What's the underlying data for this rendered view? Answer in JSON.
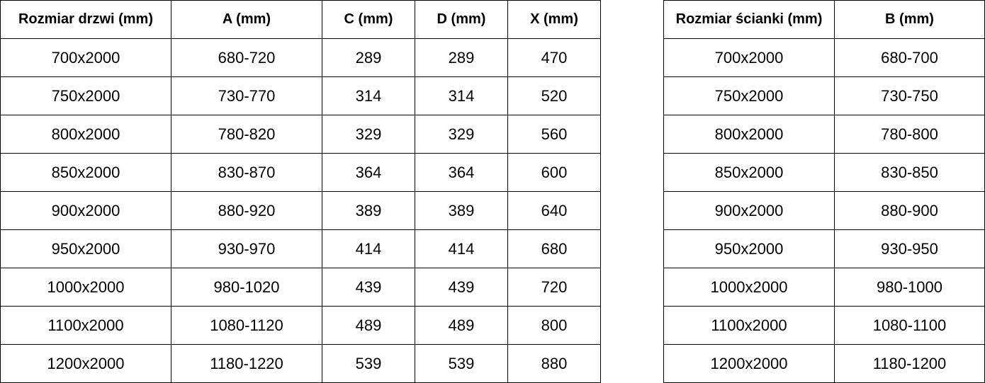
{
  "door_table": {
    "headers": [
      "Rozmiar drzwi (mm)",
      "A (mm)",
      "C (mm)",
      "D (mm)",
      "X (mm)"
    ],
    "rows": [
      [
        "700x2000",
        "680-720",
        "289",
        "289",
        "470"
      ],
      [
        "750x2000",
        "730-770",
        "314",
        "314",
        "520"
      ],
      [
        "800x2000",
        "780-820",
        "329",
        "329",
        "560"
      ],
      [
        "850x2000",
        "830-870",
        "364",
        "364",
        "600"
      ],
      [
        "900x2000",
        "880-920",
        "389",
        "389",
        "640"
      ],
      [
        "950x2000",
        "930-970",
        "414",
        "414",
        "680"
      ],
      [
        "1000x2000",
        "980-1020",
        "439",
        "439",
        "720"
      ],
      [
        "1100x2000",
        "1080-1120",
        "489",
        "489",
        "800"
      ],
      [
        "1200x2000",
        "1180-1220",
        "539",
        "539",
        "880"
      ]
    ]
  },
  "wall_table": {
    "headers": [
      "Rozmiar ścianki (mm)",
      "B (mm)"
    ],
    "rows": [
      [
        "700x2000",
        "680-700"
      ],
      [
        "750x2000",
        "730-750"
      ],
      [
        "800x2000",
        "780-800"
      ],
      [
        "850x2000",
        "830-850"
      ],
      [
        "900x2000",
        "880-900"
      ],
      [
        "950x2000",
        "930-950"
      ],
      [
        "1000x2000",
        "980-1000"
      ],
      [
        "1100x2000",
        "1080-1100"
      ],
      [
        "1200x2000",
        "1180-1200"
      ]
    ]
  }
}
